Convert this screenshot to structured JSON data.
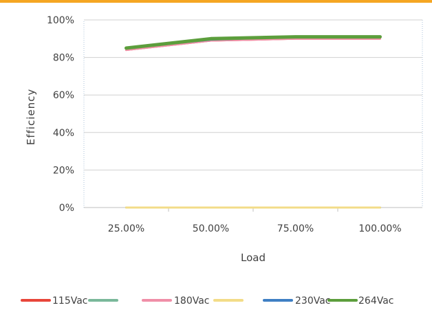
{
  "chart_data": {
    "type": "line",
    "title": "",
    "xlabel": "Load",
    "ylabel": "Efficiency",
    "categories": [
      "25.00%",
      "50.00%",
      "75.00%",
      "100.00%"
    ],
    "y_ticks": [
      "0%",
      "20%",
      "40%",
      "60%",
      "80%",
      "100%"
    ],
    "ylim": [
      0,
      100
    ],
    "grid": true,
    "legend_position": "bottom",
    "series": [
      {
        "name": "115Vac",
        "color": "#e8463a",
        "values": [
          84,
          89,
          90,
          90
        ]
      },
      {
        "name": "",
        "color": "#7ab89a",
        "values": [
          0,
          0,
          0,
          0
        ]
      },
      {
        "name": "180Vac",
        "color": "#f08fa8",
        "values": [
          84,
          89,
          90,
          90
        ]
      },
      {
        "name": "",
        "color": "#f3dc88",
        "values": [
          0,
          0,
          0,
          0
        ]
      },
      {
        "name": "230Vac",
        "color": "#3f7fc4",
        "values": [
          85,
          89.5,
          91,
          91
        ]
      },
      {
        "name": "264Vac",
        "color": "#5c9e3c",
        "values": [
          85,
          90,
          91,
          91
        ]
      }
    ]
  }
}
